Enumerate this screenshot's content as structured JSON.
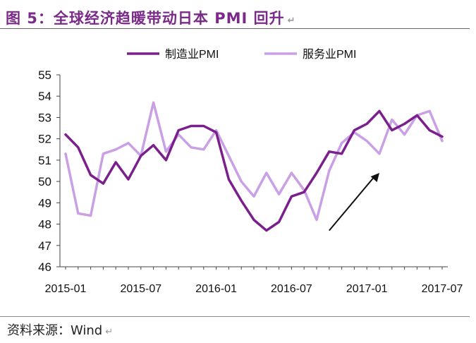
{
  "header": {
    "title": "图 5：全球经济趋暖带动日本 PMI 回升",
    "pilcrow": "↵"
  },
  "footer": {
    "source": "资料来源：Wind",
    "pilcrow": "↵"
  },
  "chart_data": {
    "type": "line",
    "title": "",
    "xlabel": "",
    "ylabel": "",
    "ylim": [
      46,
      55
    ],
    "yticks": [
      46,
      47,
      48,
      49,
      50,
      51,
      52,
      53,
      54,
      55
    ],
    "x": [
      "2015-01",
      "2015-02",
      "2015-03",
      "2015-04",
      "2015-05",
      "2015-06",
      "2015-07",
      "2015-08",
      "2015-09",
      "2015-10",
      "2015-11",
      "2015-12",
      "2016-01",
      "2016-02",
      "2016-03",
      "2016-04",
      "2016-05",
      "2016-06",
      "2016-07",
      "2016-08",
      "2016-09",
      "2016-10",
      "2016-11",
      "2016-12",
      "2017-01",
      "2017-02",
      "2017-03",
      "2017-04",
      "2017-05",
      "2017-06",
      "2017-07"
    ],
    "xtick_labels": [
      "2015-01",
      "2015-07",
      "2016-01",
      "2016-07",
      "2017-01",
      "2017-07"
    ],
    "legend_position": "top-center",
    "grid": false,
    "series": [
      {
        "name": "制造业PMI",
        "color": "#7b1f8c",
        "values": [
          52.2,
          51.6,
          50.3,
          49.9,
          50.9,
          50.1,
          51.2,
          51.7,
          51.0,
          52.4,
          52.6,
          52.6,
          52.3,
          50.1,
          49.1,
          48.2,
          47.7,
          48.1,
          49.3,
          49.5,
          50.4,
          51.4,
          51.3,
          52.4,
          52.7,
          53.3,
          52.4,
          52.7,
          53.1,
          52.4,
          52.1
        ]
      },
      {
        "name": "服务业PMI",
        "color": "#c9a0e6",
        "values": [
          51.3,
          48.5,
          48.4,
          51.3,
          51.5,
          51.8,
          51.2,
          53.7,
          51.4,
          52.2,
          51.6,
          51.5,
          52.4,
          51.2,
          50.0,
          49.3,
          50.4,
          49.4,
          50.4,
          49.6,
          48.2,
          50.5,
          51.8,
          52.3,
          51.9,
          51.3,
          52.9,
          52.2,
          53.1,
          53.3,
          51.9
        ]
      }
    ],
    "annotations": [
      {
        "type": "arrow",
        "from": [
          "2016-10",
          47.7
        ],
        "to": [
          "2017-02",
          50.4
        ],
        "color": "#111111"
      }
    ]
  }
}
